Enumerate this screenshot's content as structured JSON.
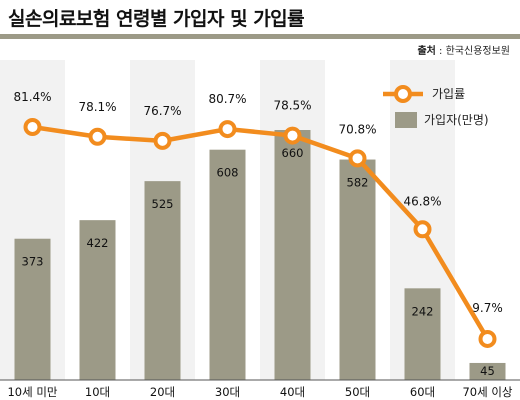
{
  "title": "실손의료보험 연령별 가입자 및 가입률",
  "source": {
    "label": "출처",
    "separator": " : ",
    "text": "한국신용정보원"
  },
  "colors": {
    "bar": "#9c9a87",
    "line": "#f28c1e",
    "marker_fill": "#ffffff",
    "band": "#f2f2f2",
    "title_rule": "#9c9a87",
    "baseline": "#555555"
  },
  "chart_data": {
    "type": "bar-line",
    "categories": [
      "10세 미만",
      "10대",
      "20대",
      "30대",
      "40대",
      "50대",
      "60대",
      "70세 이상"
    ],
    "series": [
      {
        "name": "가입자(만명)",
        "type": "bar",
        "values": [
          373,
          422,
          525,
          608,
          660,
          582,
          242,
          45
        ]
      },
      {
        "name": "가입률",
        "type": "line",
        "values": [
          81.4,
          78.1,
          76.7,
          80.7,
          78.5,
          70.8,
          46.8,
          9.7
        ],
        "labels": [
          "81.4%",
          "78.1%",
          "76.7%",
          "80.7%",
          "78.5%",
          "70.8%",
          "46.8%",
          "9.7%"
        ]
      }
    ],
    "legend": {
      "placement": "top-right"
    },
    "grid": false,
    "alternating_bands": true
  }
}
